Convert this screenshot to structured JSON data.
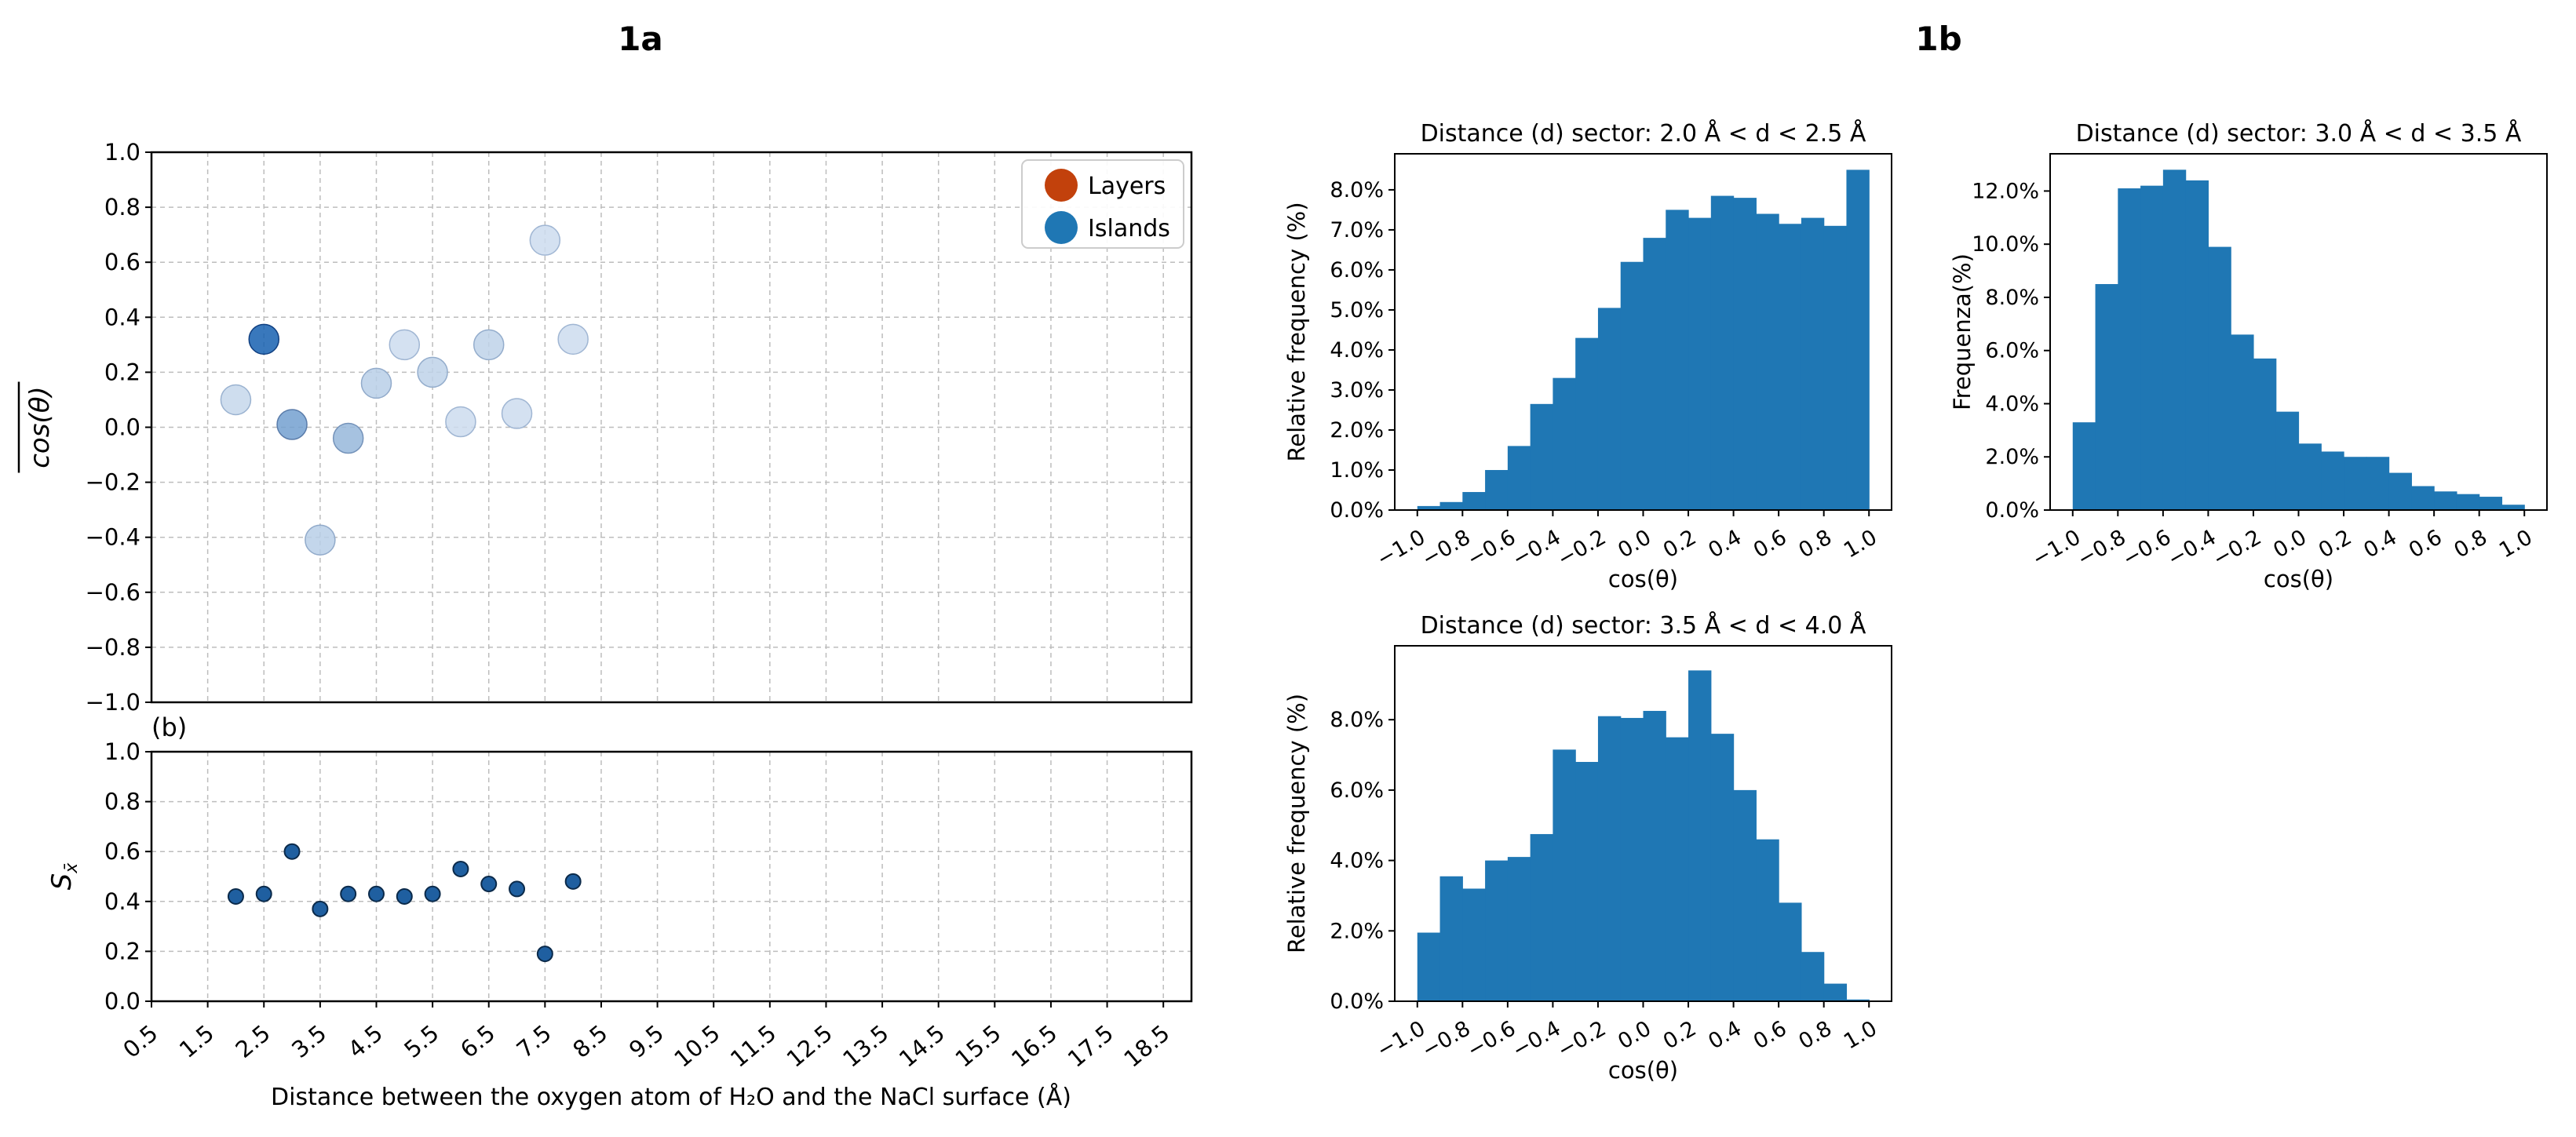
{
  "figure": {
    "panel_a_title": "1a",
    "panel_b_title": "1b"
  },
  "chart_data": [
    {
      "id": "cos-scatter",
      "type": "scatter",
      "title": "",
      "xlabel": "",
      "ylabel": "cos(θ)",
      "xlim": [
        0.5,
        19.0
      ],
      "ylim": [
        -1.0,
        1.0
      ],
      "yticks": [
        "1.0",
        "0.8",
        "0.6",
        "0.4",
        "0.2",
        "0.0",
        "−0.2",
        "−0.4",
        "−0.6",
        "−0.8",
        "−1.0"
      ],
      "grid": true,
      "legend": {
        "placement": "top-right",
        "entries": [
          {
            "name": "Layers",
            "color": "#c2410c"
          },
          {
            "name": "Islands",
            "color": "#1f77b4"
          }
        ]
      },
      "points": [
        {
          "x": 2.0,
          "y": 0.1,
          "shade": 0.25
        },
        {
          "x": 2.5,
          "y": 0.32,
          "shade": 1.0
        },
        {
          "x": 3.0,
          "y": 0.01,
          "shade": 0.6
        },
        {
          "x": 3.5,
          "y": -0.41,
          "shade": 0.3
        },
        {
          "x": 4.0,
          "y": -0.04,
          "shade": 0.45
        },
        {
          "x": 4.5,
          "y": 0.16,
          "shade": 0.3
        },
        {
          "x": 5.0,
          "y": 0.3,
          "shade": 0.22
        },
        {
          "x": 5.5,
          "y": 0.2,
          "shade": 0.28
        },
        {
          "x": 6.0,
          "y": 0.02,
          "shade": 0.22
        },
        {
          "x": 6.5,
          "y": 0.3,
          "shade": 0.28
        },
        {
          "x": 7.0,
          "y": 0.05,
          "shade": 0.22
        },
        {
          "x": 7.5,
          "y": 0.68,
          "shade": 0.22
        },
        {
          "x": 8.0,
          "y": 0.32,
          "shade": 0.22
        }
      ]
    },
    {
      "id": "s-scatter",
      "type": "scatter",
      "title": "",
      "panel_label": "(b)",
      "xlabel": "Distance between the oxygen atom of H₂O and the NaCl surface (Å)",
      "ylabel": "S",
      "ylabel_sub": "x̄",
      "xlim": [
        0.5,
        19.0
      ],
      "ylim": [
        0.0,
        1.0
      ],
      "xticks": [
        0.5,
        1.5,
        2.5,
        3.5,
        4.5,
        5.5,
        6.5,
        7.5,
        8.5,
        9.5,
        10.5,
        11.5,
        12.5,
        13.5,
        14.5,
        15.5,
        16.5,
        17.5,
        18.5
      ],
      "yticks": [
        "1.0",
        "0.8",
        "0.6",
        "0.4",
        "0.2",
        "0.0"
      ],
      "grid": true,
      "points": [
        {
          "x": 2.0,
          "y": 0.42
        },
        {
          "x": 2.5,
          "y": 0.43
        },
        {
          "x": 3.0,
          "y": 0.6
        },
        {
          "x": 3.5,
          "y": 0.37
        },
        {
          "x": 4.0,
          "y": 0.43
        },
        {
          "x": 4.5,
          "y": 0.43
        },
        {
          "x": 5.0,
          "y": 0.42
        },
        {
          "x": 5.5,
          "y": 0.43
        },
        {
          "x": 6.0,
          "y": 0.53
        },
        {
          "x": 6.5,
          "y": 0.47
        },
        {
          "x": 7.0,
          "y": 0.45
        },
        {
          "x": 7.5,
          "y": 0.19
        },
        {
          "x": 8.0,
          "y": 0.48
        }
      ]
    },
    {
      "id": "hist-2-25",
      "type": "bar",
      "title": "Distance (d) sector: 2.0 Å < d < 2.5 Å",
      "xlabel": "cos(θ)",
      "ylabel": "Relative frequency (%)",
      "xlim": [
        -1.1,
        1.1
      ],
      "ylim": [
        0,
        8.9
      ],
      "xticks": [
        "−1.0",
        "−0.8",
        "−0.6",
        "−0.4",
        "−0.2",
        "0.0",
        "0.2",
        "0.4",
        "0.6",
        "0.8",
        "1.0"
      ],
      "yticks": [
        "0.0%",
        "1.0%",
        "2.0%",
        "3.0%",
        "4.0%",
        "5.0%",
        "6.0%",
        "7.0%",
        "8.0%"
      ],
      "bin_range": [
        -1.0,
        1.0
      ],
      "values": [
        0.1,
        0.2,
        0.45,
        1.0,
        1.6,
        2.65,
        3.3,
        4.3,
        5.05,
        6.2,
        6.8,
        7.5,
        7.3,
        7.85,
        7.8,
        7.4,
        7.15,
        7.3,
        7.1,
        8.5
      ]
    },
    {
      "id": "hist-30-35",
      "type": "bar",
      "title": "Distance (d) sector: 3.0 Å < d < 3.5 Å",
      "xlabel": "cos(θ)",
      "ylabel": "Frequenza(%)",
      "xlim": [
        -1.1,
        1.1
      ],
      "ylim": [
        0,
        13.4
      ],
      "xticks": [
        "−1.0",
        "−0.8",
        "−0.6",
        "−0.4",
        "−0.2",
        "0.0",
        "0.2",
        "0.4",
        "0.6",
        "0.8",
        "1.0"
      ],
      "yticks": [
        "0.0%",
        "2.0%",
        "4.0%",
        "6.0%",
        "8.0%",
        "10.0%",
        "12.0%"
      ],
      "bin_range": [
        -1.0,
        1.0
      ],
      "values": [
        3.3,
        8.5,
        12.1,
        12.2,
        12.8,
        12.4,
        9.9,
        6.6,
        5.7,
        3.7,
        2.5,
        2.2,
        2.0,
        2.0,
        1.4,
        0.9,
        0.7,
        0.6,
        0.5,
        0.2
      ]
    },
    {
      "id": "hist-35-40",
      "type": "bar",
      "title": "Distance (d) sector: 3.5 Å < d < 4.0 Å",
      "xlabel": "cos(θ)",
      "ylabel": "Relative frequency (%)",
      "xlim": [
        -1.1,
        1.1
      ],
      "ylim": [
        0,
        10.1
      ],
      "xticks": [
        "−1.0",
        "−0.8",
        "−0.6",
        "−0.4",
        "−0.2",
        "0.0",
        "0.2",
        "0.4",
        "0.6",
        "0.8",
        "1.0"
      ],
      "yticks": [
        "0.0%",
        "2.0%",
        "4.0%",
        "6.0%",
        "8.0%"
      ],
      "bin_range": [
        -1.0,
        1.0
      ],
      "values": [
        1.95,
        3.55,
        3.2,
        4.0,
        4.1,
        4.75,
        7.15,
        6.8,
        8.1,
        8.05,
        8.25,
        7.5,
        9.4,
        7.6,
        6.0,
        4.6,
        2.8,
        1.4,
        0.5,
        0.05
      ]
    }
  ]
}
